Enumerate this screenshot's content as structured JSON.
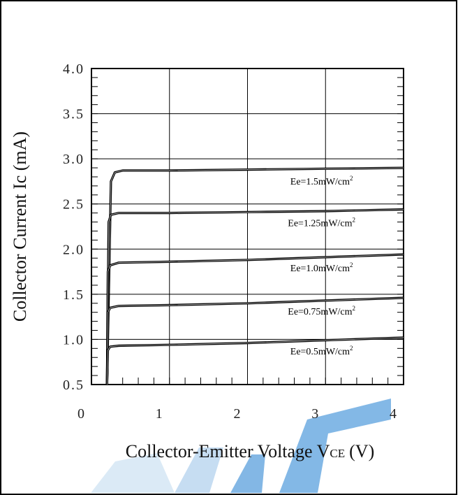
{
  "chart_data": {
    "type": "line",
    "title": "",
    "xlabel": "Collector-Emitter Voltage V",
    "xlabel_subscript": "CE",
    "xlabel_unit": "(V)",
    "ylabel": "Collector Current Ic (mA)",
    "xlim": [
      0,
      4
    ],
    "ylim": [
      0.5,
      4.0
    ],
    "x_ticks": [
      "0",
      "1",
      "2",
      "3",
      "4"
    ],
    "y_ticks": [
      "0.5",
      "1.0",
      "1.5",
      "2.0",
      "2.5",
      "3.0",
      "3.5",
      "4.0"
    ],
    "grid": true,
    "series": [
      {
        "name": "Ee=1.5mW/cm",
        "sup": "2",
        "x": [
          0.2,
          0.25,
          0.3,
          0.4,
          1.0,
          2.0,
          3.0,
          4.0
        ],
        "y": [
          0.5,
          2.75,
          2.85,
          2.87,
          2.87,
          2.88,
          2.89,
          2.9
        ]
      },
      {
        "name": "Ee=1.25mW/cm",
        "sup": "2",
        "x": [
          0.2,
          0.22,
          0.25,
          0.35,
          1.0,
          2.0,
          3.0,
          4.0
        ],
        "y": [
          0.5,
          2.3,
          2.38,
          2.4,
          2.4,
          2.41,
          2.42,
          2.44
        ]
      },
      {
        "name": "Ee=1.0mW/cm",
        "sup": "2",
        "x": [
          0.2,
          0.21,
          0.24,
          0.35,
          1.0,
          2.0,
          3.0,
          4.0
        ],
        "y": [
          0.5,
          1.75,
          1.82,
          1.85,
          1.86,
          1.88,
          1.91,
          1.94
        ]
      },
      {
        "name": "Ee=0.75mW/cm",
        "sup": "2",
        "x": [
          0.2,
          0.21,
          0.24,
          0.35,
          1.0,
          2.0,
          3.0,
          4.0
        ],
        "y": [
          0.5,
          1.3,
          1.35,
          1.37,
          1.38,
          1.4,
          1.43,
          1.46
        ]
      },
      {
        "name": "Ee=0.5mW/cm",
        "sup": "2",
        "x": [
          0.2,
          0.21,
          0.24,
          0.35,
          1.0,
          2.0,
          3.0,
          4.0
        ],
        "y": [
          0.5,
          0.88,
          0.92,
          0.93,
          0.94,
          0.96,
          0.99,
          1.02
        ]
      }
    ],
    "label_anchor_x": 2.95
  }
}
